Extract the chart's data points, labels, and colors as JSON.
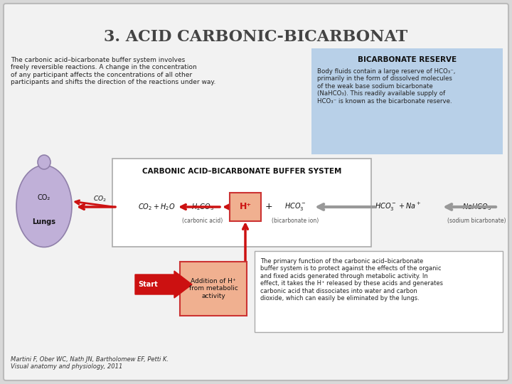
{
  "title": "3. ACID CARBONIC-BICARBONAT",
  "background_color": "#d8d8d8",
  "inner_bg_color": "#f2f2f2",
  "title_fontsize": 16,
  "title_color": "#444444",
  "left_text": "The carbonic acid–bicarbonate buffer system involves\nfreely reversible reactions. A change in the concentration\nof any participant affects the concentrations of all other\nparticipants and shifts the direction of the reactions under way.",
  "bicarb_box_title": "BICARBONATE RESERVE",
  "bicarb_box_text": "Body fluids contain a large reserve of HCO₃⁻,\nprimarily in the form of dissolved molecules\nof the weak base sodium bicarbonate\n(NaHCO₃). This readily available supply of\nHCO₃⁻ is known as the bicarbonate reserve.",
  "bicarb_box_bg": "#b8d0e8",
  "buffer_box_title": "CARBONIC ACID–BICARBONATE BUFFER SYSTEM",
  "buffer_box_bg": "#ffffff",
  "buffer_box_border": "#aaaaaa",
  "lungs_color": "#c0b0d8",
  "lungs_label": "Lungs",
  "co2_label": "CO₂",
  "h_plus_box_text": "H⁺",
  "h_plus_box_bg": "#f0b090",
  "h_plus_box_border": "#cc3333",
  "carbonic_acid_label": "(carbonic acid)",
  "bicarb_ion_label": "(bicarbonate ion)",
  "sodium_bicarb_label": "(sodium bicarbonate)",
  "start_arrow_color": "#cc1111",
  "start_label": "Start",
  "addition_box_text": "Addition of H⁺\nfrom metabolic\nactivity",
  "addition_box_bg": "#f0b090",
  "addition_box_border": "#cc3333",
  "primary_box_text": "The primary function of the carbonic acid–bicarbonate\nbuffer system is to protect against the effects of the organic\nand fixed acids generated through metabolic activity. In\neffect, it takes the H⁺ released by these acids and generates\ncarbonic acid that dissociates into water and carbon\ndioxide, which can easily be eliminated by the lungs.",
  "primary_box_bg": "#ffffff",
  "primary_box_border": "#aaaaaa",
  "citation_text": "Martini F, Ober WC, Nath JN, Bartholomew EF, Petti K.\nVisual anatomy and physiology, 2011"
}
